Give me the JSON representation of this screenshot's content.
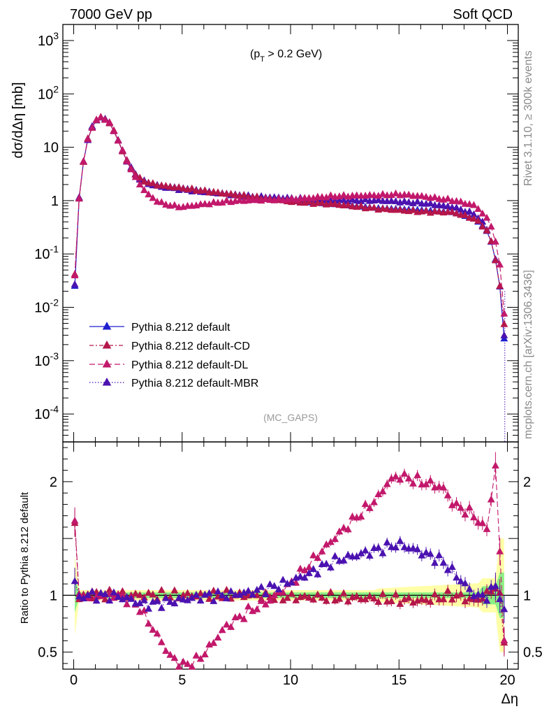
{
  "header": {
    "left": "7000 GeV pp",
    "right": "Soft QCD"
  },
  "side_labels": {
    "rivet": "Rivet 3.1.10, ≥ 300k events",
    "mcplots": "mcplots.cern.ch [arXiv:1306.3436]"
  },
  "chart_data": [
    {
      "type": "line",
      "panel": "main",
      "annotation": "(p_T > 0.2 GeV)",
      "watermark": "(MC_GAPS)",
      "xlabel": "Δη",
      "ylabel": "dσ/dΔη [mb]",
      "yscale": "log",
      "xlim": [
        -0.5,
        20.5
      ],
      "ylim": [
        3e-05,
        2000
      ],
      "yticklabels": [
        "10^-4",
        "10^-3",
        "10^-2",
        "10^-1",
        "1",
        "10",
        "10^2",
        "10^3"
      ],
      "legend_position": "lower-left",
      "colors": {
        "Pythia 8.212 default": "#1f1fd1",
        "Pythia 8.212 default-CD": "#b5174a",
        "Pythia 8.212 default-DL": "#c2186b",
        "Pythia 8.212 default-MBR": "#4b12b0"
      },
      "series_anchor_points": [
        {
          "name": "Pythia 8.212 default",
          "x": [
            0.05,
            0.25,
            0.5,
            0.75,
            1.0,
            1.25,
            1.5,
            1.75,
            2.0,
            2.25,
            2.5,
            2.75,
            3.0,
            3.5,
            4.0,
            5.0,
            6.0,
            8.0,
            10.0,
            12.0,
            14.0,
            16.0,
            17.5,
            18.5,
            19.0,
            19.3,
            19.55,
            19.75,
            19.9
          ],
          "y": [
            0.025,
            1.1,
            8,
            20,
            31,
            36,
            33,
            25,
            15,
            8.5,
            5,
            3.5,
            2.6,
            2.1,
            1.9,
            1.7,
            1.5,
            1.2,
            0.98,
            0.85,
            0.72,
            0.66,
            0.6,
            0.45,
            0.3,
            0.15,
            0.05,
            0.012,
            0.0012
          ]
        },
        {
          "name": "Pythia 8.212 default-CD",
          "x": [
            0.05,
            0.25,
            0.5,
            0.75,
            1.0,
            1.25,
            1.5,
            1.75,
            2.0,
            2.25,
            2.5,
            2.75,
            3.0,
            3.5,
            4.0,
            5.0,
            6.0,
            8.0,
            10.0,
            12.0,
            14.0,
            16.0,
            17.5,
            18.5,
            19.0,
            19.3,
            19.55,
            19.75,
            19.9
          ],
          "y": [
            0.04,
            1.1,
            8,
            20,
            31,
            36,
            33,
            25,
            15,
            8.5,
            5,
            3.5,
            2.6,
            2.1,
            1.9,
            1.7,
            1.5,
            1.2,
            0.95,
            0.85,
            0.7,
            0.62,
            0.6,
            0.45,
            0.3,
            0.15,
            0.05,
            0.012,
            0.003
          ]
        },
        {
          "name": "Pythia 8.212 default-DL",
          "x": [
            0.05,
            0.25,
            0.5,
            0.75,
            1.0,
            1.25,
            1.5,
            1.75,
            2.0,
            2.25,
            2.5,
            2.75,
            3.0,
            3.5,
            4.0,
            4.5,
            5.0,
            5.5,
            6.0,
            7.0,
            8.0,
            10.0,
            12.0,
            14.0,
            15.0,
            16.0,
            17.5,
            18.5,
            19.0,
            19.3,
            19.55,
            19.75,
            19.9
          ],
          "y": [
            0.04,
            1.1,
            8,
            20,
            31,
            36,
            33,
            25,
            15,
            8.5,
            5,
            3.2,
            2.1,
            1.2,
            0.9,
            0.8,
            0.75,
            0.8,
            0.85,
            0.95,
            1.0,
            1.05,
            1.2,
            1.25,
            1.3,
            1.2,
            1.0,
            0.8,
            0.5,
            0.3,
            0.12,
            0.03,
            0.004
          ]
        },
        {
          "name": "Pythia 8.212 default-MBR",
          "x": [
            0.05,
            0.25,
            0.5,
            0.75,
            1.0,
            1.25,
            1.5,
            1.75,
            2.0,
            2.25,
            2.5,
            2.75,
            3.0,
            3.5,
            4.0,
            5.0,
            6.0,
            8.0,
            10.0,
            12.0,
            14.0,
            16.0,
            17.5,
            18.5,
            19.0,
            19.3,
            19.55,
            19.75,
            19.9
          ],
          "y": [
            0.028,
            1.1,
            8,
            20,
            31,
            36,
            33,
            25,
            15,
            8.5,
            5,
            3.5,
            2.6,
            2.0,
            1.8,
            1.6,
            1.45,
            1.2,
            1.1,
            1.0,
            1.0,
            0.9,
            0.75,
            0.55,
            0.33,
            0.15,
            0.05,
            0.012,
            0.0015
          ]
        }
      ]
    },
    {
      "type": "line",
      "panel": "ratio",
      "xlabel": "Δη",
      "ylabel": "Ratio to Pythia 8.212 default",
      "xlim": [
        -0.5,
        20.5
      ],
      "ylim": [
        0.35,
        2.35
      ],
      "xticks": [
        0,
        5,
        10,
        15,
        20
      ],
      "yticklabels": [
        "0.5",
        "1",
        "2"
      ],
      "series_anchor_points": [
        {
          "name": "Pythia 8.212 default-CD",
          "x": [
            0.05,
            0.25,
            0.5,
            2.0,
            5.0,
            8.0,
            10.0,
            12.0,
            14.0,
            16.0,
            17.5,
            18.5,
            19.0,
            19.3,
            19.55,
            19.75,
            19.9
          ],
          "y": [
            1.65,
            0.97,
            1.0,
            1.0,
            1.0,
            1.0,
            0.98,
            0.98,
            0.97,
            0.95,
            1.0,
            0.95,
            1.0,
            1.05,
            1.1,
            0.85,
            0.5
          ]
        },
        {
          "name": "Pythia 8.212 default-DL",
          "x": [
            0.05,
            0.25,
            0.5,
            2.0,
            2.5,
            3.0,
            3.5,
            4.0,
            4.5,
            5.0,
            5.5,
            6.0,
            6.5,
            7.0,
            8.0,
            9.0,
            10.0,
            11.0,
            12.0,
            13.0,
            14.0,
            14.5,
            15.0,
            16.0,
            17.0,
            17.5,
            18.0,
            18.5,
            19.0,
            19.3,
            19.5,
            19.75,
            19.9
          ],
          "y": [
            1.7,
            0.97,
            1.0,
            1.0,
            0.96,
            0.9,
            0.75,
            0.6,
            0.45,
            0.38,
            0.4,
            0.48,
            0.6,
            0.72,
            0.85,
            0.95,
            1.1,
            1.3,
            1.5,
            1.68,
            1.85,
            2.0,
            2.05,
            2.0,
            1.95,
            1.8,
            1.75,
            1.7,
            1.55,
            1.9,
            2.2,
            0.85,
            0.5
          ]
        },
        {
          "name": "Pythia 8.212 default-MBR",
          "x": [
            0.05,
            0.25,
            0.5,
            2.0,
            2.5,
            3.0,
            3.5,
            4.0,
            5.0,
            6.0,
            7.0,
            8.0,
            9.0,
            10.0,
            11.0,
            12.0,
            13.0,
            14.0,
            15.0,
            16.0,
            17.0,
            17.5,
            18.0,
            18.5,
            19.0,
            19.3,
            19.55,
            19.75,
            19.9
          ],
          "y": [
            1.12,
            0.97,
            1.0,
            0.99,
            0.97,
            0.93,
            0.92,
            0.93,
            0.96,
            0.99,
            1.0,
            1.02,
            1.06,
            1.12,
            1.2,
            1.3,
            1.35,
            1.4,
            1.45,
            1.38,
            1.3,
            1.2,
            1.1,
            1.0,
            0.98,
            1.05,
            1.1,
            0.9,
            0.8
          ]
        }
      ]
    }
  ]
}
